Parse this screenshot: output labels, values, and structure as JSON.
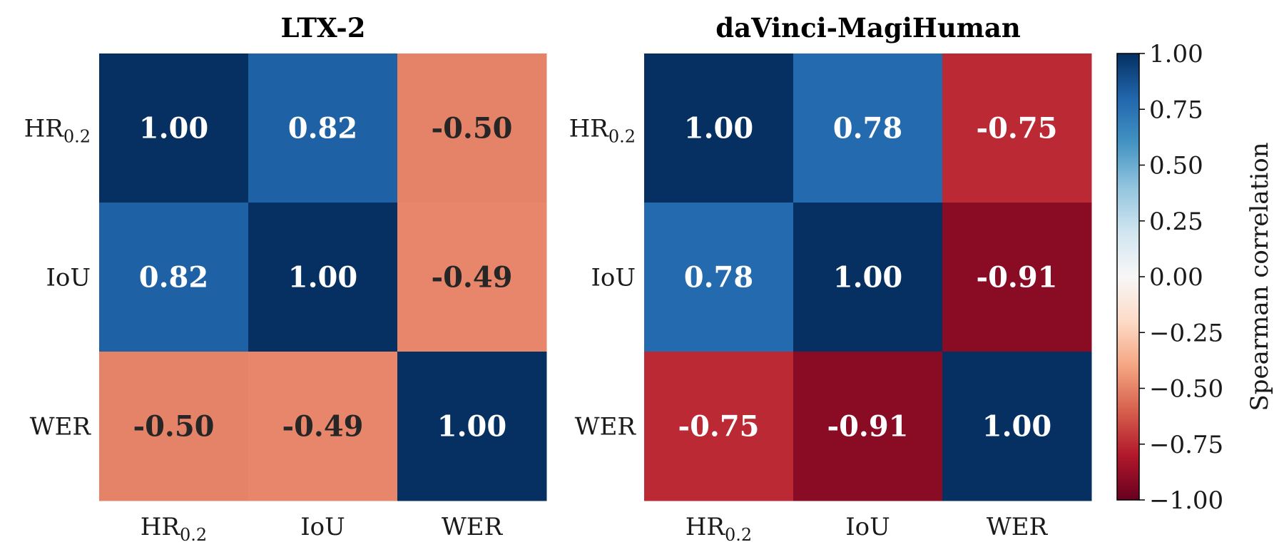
{
  "chart_data": [
    {
      "type": "heatmap",
      "title": "LTX-2",
      "rows": [
        "HR0.2",
        "IoU",
        "WER"
      ],
      "columns": [
        "HR0.2",
        "IoU",
        "WER"
      ],
      "values": [
        [
          1.0,
          0.82,
          -0.5
        ],
        [
          0.82,
          1.0,
          -0.49
        ],
        [
          -0.5,
          -0.49,
          1.0
        ]
      ],
      "value_labels": [
        [
          "1.00",
          "0.82",
          "-0.50"
        ],
        [
          "0.82",
          "1.00",
          "-0.49"
        ],
        [
          "-0.50",
          "-0.49",
          "1.00"
        ]
      ]
    },
    {
      "type": "heatmap",
      "title": "daVinci-MagiHuman",
      "rows": [
        "HR0.2",
        "IoU",
        "WER"
      ],
      "columns": [
        "HR0.2",
        "IoU",
        "WER"
      ],
      "values": [
        [
          1.0,
          0.78,
          -0.75
        ],
        [
          0.78,
          1.0,
          -0.91
        ],
        [
          -0.75,
          -0.91,
          1.0
        ]
      ],
      "value_labels": [
        [
          "1.00",
          "0.78",
          "-0.75"
        ],
        [
          "0.78",
          "1.00",
          "-0.91"
        ],
        [
          "-0.75",
          "-0.91",
          "1.00"
        ]
      ]
    }
  ],
  "colorbar": {
    "label": "Spearman correlation",
    "range": [
      -1.0,
      1.0
    ],
    "ticks": [
      1.0,
      0.75,
      0.5,
      0.25,
      0.0,
      -0.25,
      -0.5,
      -0.75,
      -1.0
    ],
    "tick_labels": [
      "1.00",
      "0.75",
      "0.50",
      "0.25",
      "0.00",
      "−0.25",
      "−0.50",
      "−0.75",
      "−1.00"
    ],
    "colormap": "RdBu",
    "stops": [
      "#67001f",
      "#b2182b",
      "#d6604d",
      "#f4a582",
      "#fddbc7",
      "#f7f7f7",
      "#d1e5f0",
      "#92c5de",
      "#4393c3",
      "#2166ac",
      "#053061"
    ]
  },
  "label_parts": {
    "HR0.2": [
      "HR",
      "0.2"
    ],
    "IoU": [
      "IoU",
      ""
    ],
    "WER": [
      "WER",
      ""
    ]
  }
}
